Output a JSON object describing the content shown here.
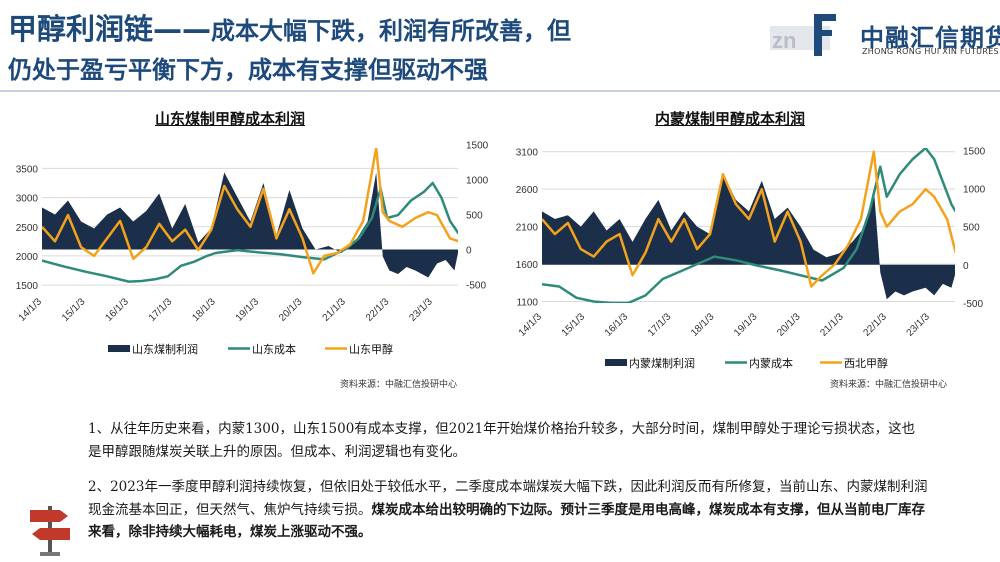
{
  "page": {
    "title_line1_a": "甲醇利润链——",
    "title_line1_b": "成本大幅下跌，利润有所改善，但",
    "title_line2": "仍处于盈亏平衡下方，成本有支撑但驱动不强",
    "logo_cn": "中融汇信期货",
    "logo_en": "ZHONG RONG HUI XIN FUTURES",
    "colors": {
      "title": "#1d4a7a",
      "profit": "#1b2f4a",
      "cost": "#2e8b7a",
      "methanol": "#f4a21c"
    },
    "icon": "signpost-icon"
  },
  "paragraphs": {
    "p1": "1、从往年历史来看，内蒙1300，山东1500有成本支撑，但2021年开始煤价格抬升较多，大部分时间，煤制甲醇处于理论亏损状态，这也是甲醇跟随煤炭关联上升的原因。但成本、利润逻辑也有变化。",
    "p2_normal": "2、2023年一季度甲醇利润持续恢复，但依旧处于较低水平，二季度成本端煤炭大幅下跌，因此利润反而有所修复，当前山东、内蒙煤制利润现金流基本回正，但天然气、焦炉气持续亏损。",
    "p2_bold": "煤炭成本给出较明确的下边际。预计三季度是用电高峰，煤炭成本有支撑，但从当前电厂库存来看，除非持续大幅耗电，煤炭上涨驱动不强。"
  },
  "chart_data": [
    {
      "type": "area",
      "title": "山东煤制甲醇成本利润",
      "source": "资料来源：中融汇信投研中心",
      "x_ticks": [
        "14/1/3",
        "15/1/3",
        "16/1/3",
        "17/1/3",
        "18/1/3",
        "19/1/3",
        "20/1/3",
        "21/1/3",
        "22/1/3",
        "23/1/3"
      ],
      "x_range": [
        "2014-01-03",
        "2023-08"
      ],
      "left_axis": {
        "ticks": [
          1500,
          2000,
          2500,
          3000,
          3500
        ],
        "ylim": [
          1450,
          3850
        ]
      },
      "right_axis": {
        "ticks": [
          -500,
          0,
          500,
          1000,
          1500
        ],
        "ylim": [
          -550,
          1450
        ]
      },
      "grid": true,
      "legend_position": "bottom",
      "series": [
        {
          "name": "山东煤制利润",
          "kind": "area",
          "axis": "right",
          "x": [
            2014.0,
            2014.3,
            2014.6,
            2014.9,
            2015.2,
            2015.5,
            2015.8,
            2016.1,
            2016.4,
            2016.7,
            2017.0,
            2017.3,
            2017.6,
            2017.9,
            2018.2,
            2018.5,
            2018.8,
            2019.1,
            2019.4,
            2019.7,
            2020.0,
            2020.3,
            2020.6,
            2020.9,
            2021.2,
            2021.5,
            2021.7,
            2021.85,
            2022.0,
            2022.2,
            2022.4,
            2022.6,
            2022.9,
            2023.1,
            2023.3,
            2023.5,
            2023.6
          ],
          "y": [
            600,
            500,
            700,
            400,
            300,
            500,
            600,
            400,
            550,
            800,
            300,
            650,
            100,
            300,
            1100,
            750,
            400,
            950,
            200,
            850,
            300,
            0,
            50,
            -50,
            100,
            400,
            1100,
            -100,
            -300,
            -350,
            -250,
            -300,
            -400,
            -200,
            -150,
            -300,
            0
          ]
        },
        {
          "name": "山东成本",
          "kind": "line",
          "axis": "left",
          "x": [
            2014.0,
            2014.5,
            2015.0,
            2015.5,
            2016.0,
            2016.3,
            2016.6,
            2016.9,
            2017.2,
            2017.5,
            2017.8,
            2018.0,
            2018.5,
            2019.0,
            2019.5,
            2020.0,
            2020.5,
            2021.0,
            2021.3,
            2021.6,
            2021.8,
            2021.95,
            2022.2,
            2022.5,
            2022.8,
            2023.0,
            2023.2,
            2023.4,
            2023.6
          ],
          "y": [
            1920,
            1820,
            1730,
            1650,
            1560,
            1570,
            1600,
            1650,
            1830,
            1900,
            2000,
            2050,
            2100,
            2060,
            2030,
            1980,
            1940,
            2120,
            2300,
            2650,
            3150,
            2650,
            2700,
            2950,
            3100,
            3250,
            3000,
            2600,
            2380
          ]
        },
        {
          "name": "山东甲醇",
          "kind": "line",
          "axis": "left",
          "x": [
            2014.0,
            2014.3,
            2014.6,
            2014.9,
            2015.2,
            2015.5,
            2015.8,
            2016.1,
            2016.4,
            2016.7,
            2017.0,
            2017.3,
            2017.6,
            2017.9,
            2018.2,
            2018.5,
            2018.8,
            2019.1,
            2019.4,
            2019.7,
            2020.0,
            2020.25,
            2020.5,
            2020.8,
            2021.1,
            2021.4,
            2021.7,
            2021.85,
            2022.0,
            2022.3,
            2022.6,
            2022.9,
            2023.1,
            2023.4,
            2023.6
          ],
          "y": [
            2500,
            2250,
            2700,
            2150,
            2000,
            2300,
            2600,
            1950,
            2150,
            2550,
            2250,
            2450,
            2100,
            2450,
            3200,
            2800,
            2500,
            3150,
            2300,
            2800,
            2300,
            1700,
            2000,
            2050,
            2200,
            2600,
            3850,
            2750,
            2600,
            2500,
            2650,
            2750,
            2700,
            2300,
            2250
          ]
        }
      ]
    },
    {
      "type": "area",
      "title": "内蒙煤制甲醇成本利润",
      "source": "资料来源：中融汇信投研中心",
      "x_ticks": [
        "14/1/3",
        "15/1/3",
        "16/1/3",
        "17/1/3",
        "18/1/3",
        "19/1/3",
        "20/1/3",
        "21/1/3",
        "22/1/3",
        "23/1/3"
      ],
      "x_range": [
        "2014-01-03",
        "2023-08"
      ],
      "left_axis": {
        "ticks": [
          1100,
          1600,
          2100,
          2600,
          3100
        ],
        "ylim": [
          1080,
          3150
        ]
      },
      "right_axis": {
        "ticks": [
          -500,
          0,
          500,
          1000,
          1500
        ],
        "ylim": [
          -500,
          1530
        ]
      },
      "grid": true,
      "legend_position": "bottom",
      "series": [
        {
          "name": "内蒙煤制利润",
          "kind": "area",
          "axis": "right",
          "x": [
            2014.0,
            2014.3,
            2014.6,
            2014.9,
            2015.2,
            2015.5,
            2015.8,
            2016.1,
            2016.4,
            2016.7,
            2017.0,
            2017.3,
            2017.6,
            2017.9,
            2018.2,
            2018.5,
            2018.8,
            2019.1,
            2019.4,
            2019.7,
            2020.0,
            2020.3,
            2020.6,
            2020.9,
            2021.2,
            2021.5,
            2021.7,
            2021.85,
            2022.0,
            2022.2,
            2022.4,
            2022.6,
            2022.9,
            2023.1,
            2023.3,
            2023.5,
            2023.6
          ],
          "y": [
            700,
            600,
            650,
            500,
            700,
            450,
            600,
            300,
            600,
            850,
            450,
            700,
            500,
            400,
            1200,
            850,
            700,
            1100,
            600,
            750,
            500,
            200,
            100,
            150,
            300,
            500,
            1000,
            -100,
            -450,
            -350,
            -400,
            -350,
            -300,
            -400,
            -250,
            -300,
            -100
          ]
        },
        {
          "name": "内蒙成本",
          "kind": "line",
          "axis": "left",
          "x": [
            2014.0,
            2014.4,
            2014.8,
            2015.2,
            2015.6,
            2016.0,
            2016.4,
            2016.8,
            2017.2,
            2017.6,
            2018.0,
            2018.5,
            2019.0,
            2019.5,
            2020.0,
            2020.5,
            2021.0,
            2021.3,
            2021.6,
            2021.85,
            2022.0,
            2022.3,
            2022.6,
            2022.9,
            2023.1,
            2023.3,
            2023.5,
            2023.6
          ],
          "y": [
            1330,
            1300,
            1150,
            1100,
            1080,
            1080,
            1180,
            1400,
            1500,
            1600,
            1700,
            1650,
            1580,
            1520,
            1450,
            1380,
            1550,
            1800,
            2300,
            2900,
            2500,
            2800,
            3000,
            3150,
            3000,
            2700,
            2400,
            2300
          ]
        },
        {
          "name": "西北甲醇",
          "kind": "line",
          "axis": "left",
          "x": [
            2014.0,
            2014.3,
            2014.6,
            2014.9,
            2015.2,
            2015.5,
            2015.8,
            2016.1,
            2016.4,
            2016.7,
            2017.0,
            2017.3,
            2017.6,
            2017.9,
            2018.2,
            2018.5,
            2018.8,
            2019.1,
            2019.4,
            2019.7,
            2020.0,
            2020.25,
            2020.5,
            2020.8,
            2021.1,
            2021.4,
            2021.7,
            2021.85,
            2022.0,
            2022.3,
            2022.6,
            2022.9,
            2023.1,
            2023.4,
            2023.6
          ],
          "y": [
            2200,
            2000,
            2150,
            1800,
            1700,
            1900,
            2000,
            1450,
            1750,
            2200,
            1900,
            2200,
            1800,
            2000,
            2800,
            2400,
            2200,
            2600,
            1900,
            2300,
            1900,
            1300,
            1450,
            1600,
            1850,
            2200,
            3100,
            2300,
            2100,
            2300,
            2400,
            2600,
            2500,
            2200,
            1750
          ]
        }
      ]
    }
  ]
}
